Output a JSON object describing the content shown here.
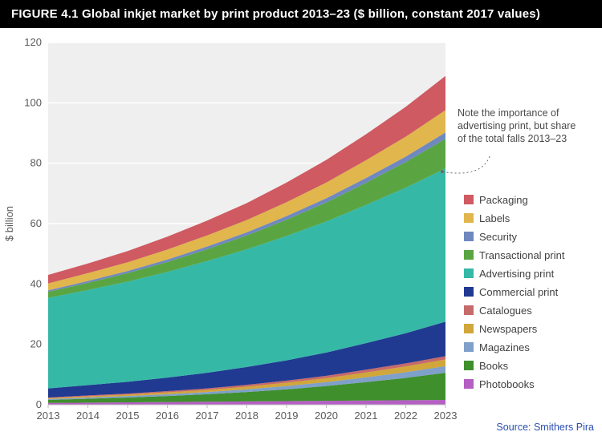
{
  "title": "FIGURE 4.1 Global inkjet market by print product 2013–23 ($ billion, constant 2017 values)",
  "source": "Source: Smithers Pira",
  "annotation": {
    "lines": [
      "Note the importance of",
      "advertising print, but share",
      "of the total falls 2013–23"
    ]
  },
  "chart": {
    "type": "stacked-area",
    "ylabel": "$ billion",
    "ylim": [
      0,
      120
    ],
    "ytick_step": 20,
    "categories": [
      "2013",
      "2014",
      "2015",
      "2016",
      "2017",
      "2018",
      "2019",
      "2020",
      "2021",
      "2022",
      "2023"
    ],
    "plot_bg": "#efefef",
    "grid_color": "#ffffff",
    "axis_text_color": "#5a5a5a",
    "series": [
      {
        "name": "Photobooks",
        "color": "#b55fc4",
        "values": [
          0.6,
          0.7,
          0.8,
          0.9,
          1.0,
          1.1,
          1.2,
          1.3,
          1.4,
          1.5,
          1.6
        ]
      },
      {
        "name": "Books",
        "color": "#3f8f2d",
        "values": [
          1.0,
          1.3,
          1.6,
          2.0,
          2.5,
          3.1,
          3.9,
          4.9,
          6.1,
          7.4,
          9.0
        ]
      },
      {
        "name": "Magazines",
        "color": "#7fa0c8",
        "values": [
          0.3,
          0.4,
          0.5,
          0.6,
          0.7,
          0.9,
          1.1,
          1.3,
          1.6,
          1.9,
          2.2
        ]
      },
      {
        "name": "Newspapers",
        "color": "#d1a63a",
        "values": [
          0.3,
          0.4,
          0.5,
          0.6,
          0.7,
          0.9,
          1.1,
          1.3,
          1.6,
          1.9,
          2.2
        ]
      },
      {
        "name": "Catalogues",
        "color": "#c66a6a",
        "values": [
          0.2,
          0.3,
          0.3,
          0.4,
          0.5,
          0.6,
          0.7,
          0.8,
          0.9,
          1.0,
          1.1
        ]
      },
      {
        "name": "Commercial print",
        "color": "#203a91",
        "values": [
          3.0,
          3.4,
          3.9,
          4.5,
          5.2,
          5.9,
          6.7,
          7.7,
          8.8,
          10.0,
          11.4
        ]
      },
      {
        "name": "Advertising print",
        "color": "#36b8a7",
        "values": [
          30.0,
          31.5,
          33.2,
          35.0,
          37.0,
          39.0,
          41.2,
          43.4,
          45.8,
          48.2,
          50.8
        ]
      },
      {
        "name": "Transactional print",
        "color": "#5aa542",
        "values": [
          2.0,
          2.4,
          2.8,
          3.3,
          3.9,
          4.6,
          5.4,
          6.3,
          7.3,
          8.5,
          9.8
        ]
      },
      {
        "name": "Security",
        "color": "#6f88c0",
        "values": [
          0.5,
          0.6,
          0.7,
          0.8,
          0.9,
          1.0,
          1.2,
          1.4,
          1.6,
          1.8,
          2.1
        ]
      },
      {
        "name": "Labels",
        "color": "#e0b64d",
        "values": [
          2.3,
          2.6,
          2.9,
          3.3,
          3.7,
          4.1,
          4.6,
          5.2,
          5.9,
          6.6,
          7.4
        ]
      },
      {
        "name": "Packaging",
        "color": "#cf5a62",
        "values": [
          2.8,
          3.2,
          3.7,
          4.3,
          4.9,
          5.6,
          6.5,
          7.5,
          8.6,
          9.9,
          11.3
        ]
      }
    ],
    "legend_order": [
      "Packaging",
      "Labels",
      "Security",
      "Transactional print",
      "Advertising print",
      "Commercial print",
      "Catalogues",
      "Newspapers",
      "Magazines",
      "Books",
      "Photobooks"
    ]
  }
}
